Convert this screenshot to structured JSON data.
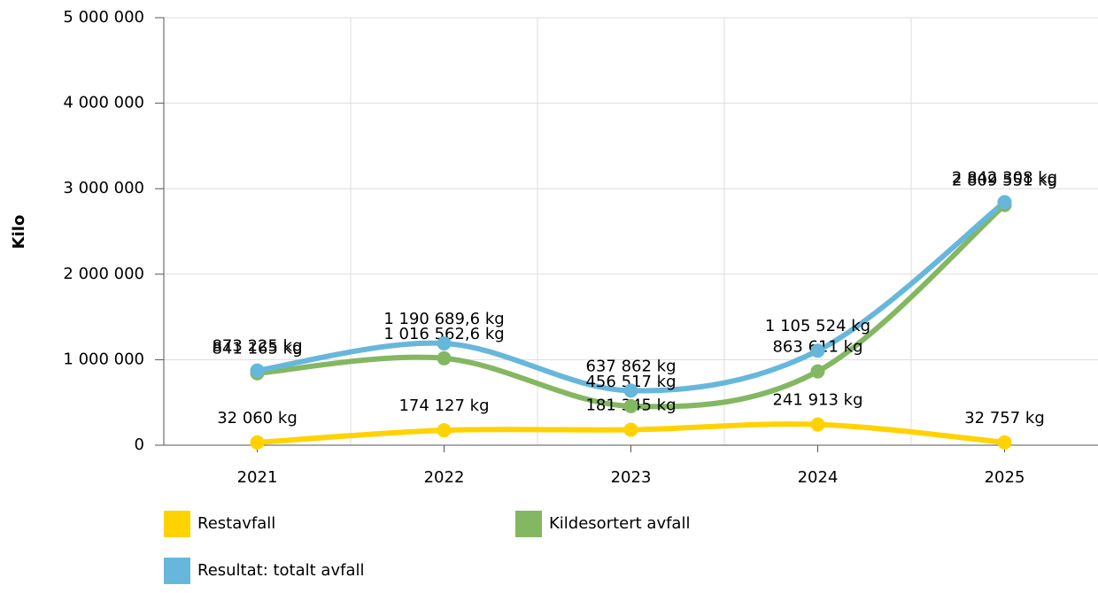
{
  "chart_data": {
    "type": "line",
    "categories": [
      "2021",
      "2022",
      "2023",
      "2024",
      "2025"
    ],
    "y_label": "Kilo",
    "ylim": [
      0,
      5000000
    ],
    "yticks": [
      0,
      {
        "value": 1000000,
        "label": "1 000 000"
      },
      {
        "value": 2000000,
        "label": "2 000 000"
      },
      {
        "value": 3000000,
        "label": "3 000 000"
      },
      {
        "value": 4000000,
        "label": "4 000 000"
      },
      {
        "value": 5000000,
        "label": "5 000 000"
      }
    ],
    "grid": true,
    "legend": "bottom",
    "series": [
      {
        "name": "Restavfall",
        "color": "#ffd200",
        "values": [
          32060,
          174127,
          181345,
          241913,
          32757
        ],
        "value_labels": [
          "32 060 kg",
          "174 127 kg",
          "181 345 kg",
          "241 913 kg",
          "32 757 kg"
        ]
      },
      {
        "name": "Kildesortert avfall",
        "color": "#84b761",
        "values": [
          841165,
          1016562.6,
          456517,
          863611,
          2809551
        ],
        "value_labels": [
          "841 165 kg",
          "1 016 562,6 kg",
          "456 517 kg",
          "863 611 kg",
          "2 809 551 kg"
        ]
      },
      {
        "name": "Resultat: totalt avfall",
        "color": "#67b7dc",
        "values": [
          873225,
          1190689.6,
          637862,
          1105524,
          2842308
        ],
        "value_labels": [
          "873 225 kg",
          "1 190 689,6 kg",
          "637 862 kg",
          "1 105 524 kg",
          "2 842 308 kg"
        ]
      }
    ]
  }
}
